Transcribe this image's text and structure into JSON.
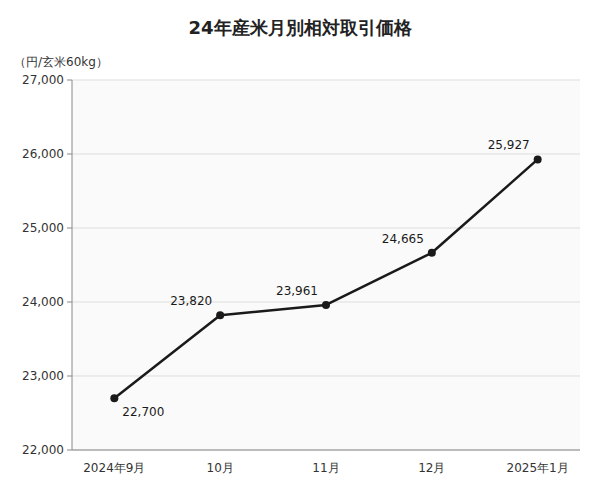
{
  "chart_data": {
    "type": "line",
    "title": "24年産米月別相対取引価格",
    "ylabel": "（円/玄米60kg）",
    "categories": [
      "2024年9月",
      "10月",
      "11月",
      "12月",
      "2025年1月"
    ],
    "values": [
      22700,
      23820,
      23961,
      24665,
      25927
    ],
    "value_labels": [
      "22,700",
      "23,820",
      "23,961",
      "24,665",
      "25,927"
    ],
    "data_labels": true,
    "color": "#1a1a1a",
    "marker": "circle",
    "ylim": [
      22000,
      27000
    ],
    "yticks": [
      {
        "value": 22000,
        "label": "22,000"
      },
      {
        "value": 23000,
        "label": "23,000"
      },
      {
        "value": 24000,
        "label": "24,000"
      },
      {
        "value": 25000,
        "label": "25,000"
      },
      {
        "value": 26000,
        "label": "26,000"
      },
      {
        "value": 27000,
        "label": "27,000"
      }
    ],
    "grid": true
  }
}
